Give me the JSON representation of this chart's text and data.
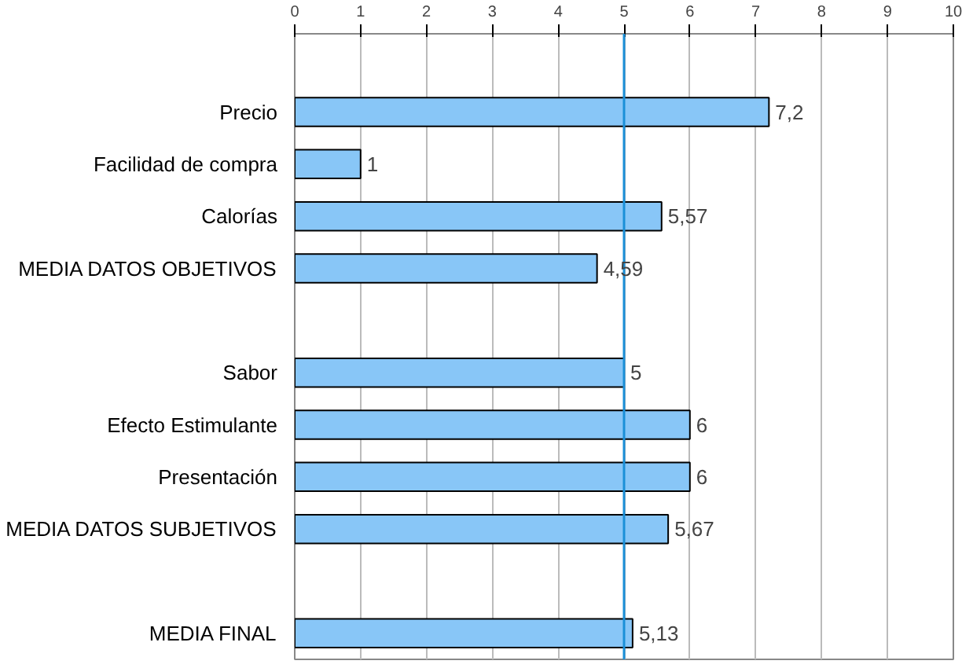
{
  "chart_data": {
    "type": "bar",
    "orientation": "horizontal",
    "categories": [
      null,
      "Precio",
      "Facilidad de compra",
      "Calorías",
      "MEDIA DATOS OBJETIVOS",
      null,
      "Sabor",
      "Efecto Estimulante",
      "Presentación",
      "MEDIA DATOS SUBJETIVOS",
      null,
      "MEDIA FINAL"
    ],
    "values": [
      null,
      7.2,
      1,
      5.57,
      4.59,
      null,
      5,
      6,
      6,
      5.67,
      null,
      5.13
    ],
    "value_labels": [
      null,
      "7,2",
      "1",
      "5,57",
      "4,59",
      null,
      "5",
      "6",
      "6",
      "5,67",
      null,
      "5,13"
    ],
    "color": "#88c6f7",
    "xlim": [
      0,
      10
    ],
    "xticks": [
      0,
      1,
      2,
      3,
      4,
      5,
      6,
      7,
      8,
      9,
      10
    ],
    "grid": "x",
    "ref_lines": [
      {
        "axis": "x",
        "value": 5,
        "color": "#1a8fd8",
        "line_style": "solid"
      }
    ]
  }
}
